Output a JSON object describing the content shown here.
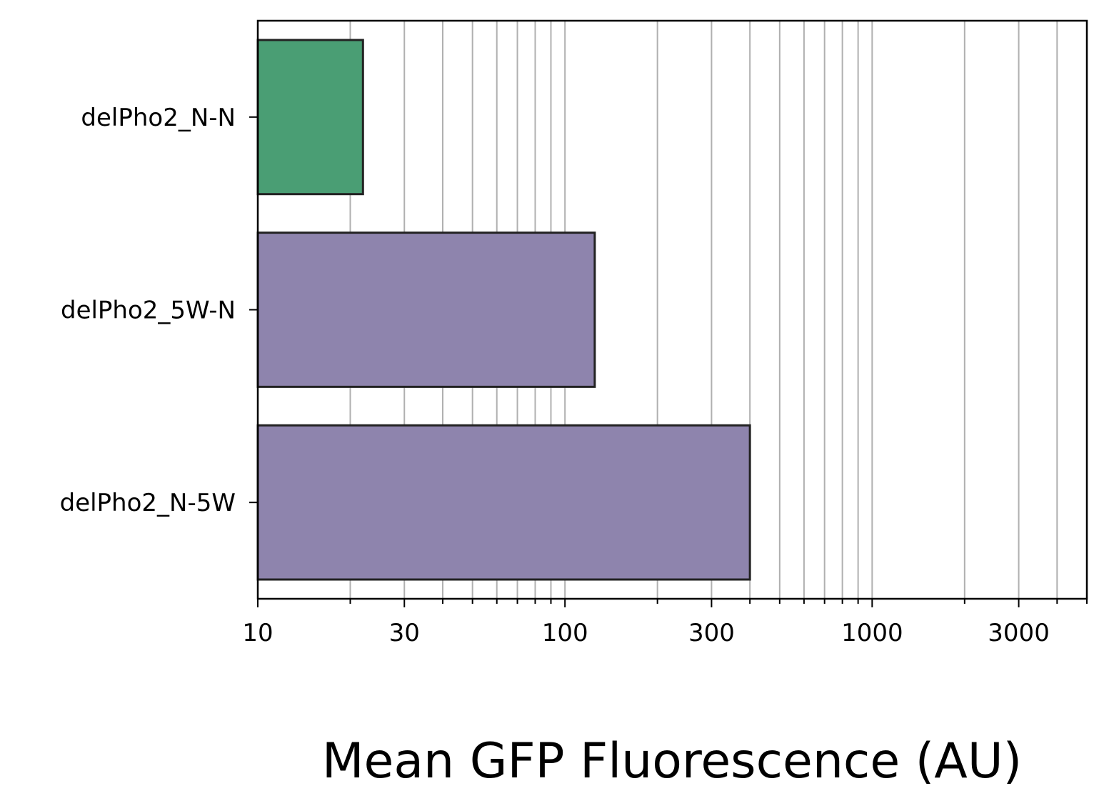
{
  "chart_data": {
    "type": "bar",
    "orientation": "horizontal",
    "categories": [
      "delPho2_N-N",
      "delPho2_5W-N",
      "delPho2_N-5W"
    ],
    "values": [
      22,
      125,
      400
    ],
    "bar_colors": [
      "#4a9e74",
      "#8e84ad",
      "#8e84ad"
    ],
    "edge_color": "#222222",
    "xlabel": "Mean GFP Fluorescence (AU)",
    "ylabel": "",
    "title": "",
    "xscale": "log",
    "xlim": [
      10,
      5000
    ],
    "xticks": [
      10,
      30,
      100,
      300,
      1000,
      3000
    ],
    "xtick_labels": [
      "10",
      "30",
      "100",
      "300",
      "1000",
      "3000"
    ],
    "grid": "vertical, major and minor",
    "grid_color": "#b0b0b0",
    "legend": "none"
  }
}
